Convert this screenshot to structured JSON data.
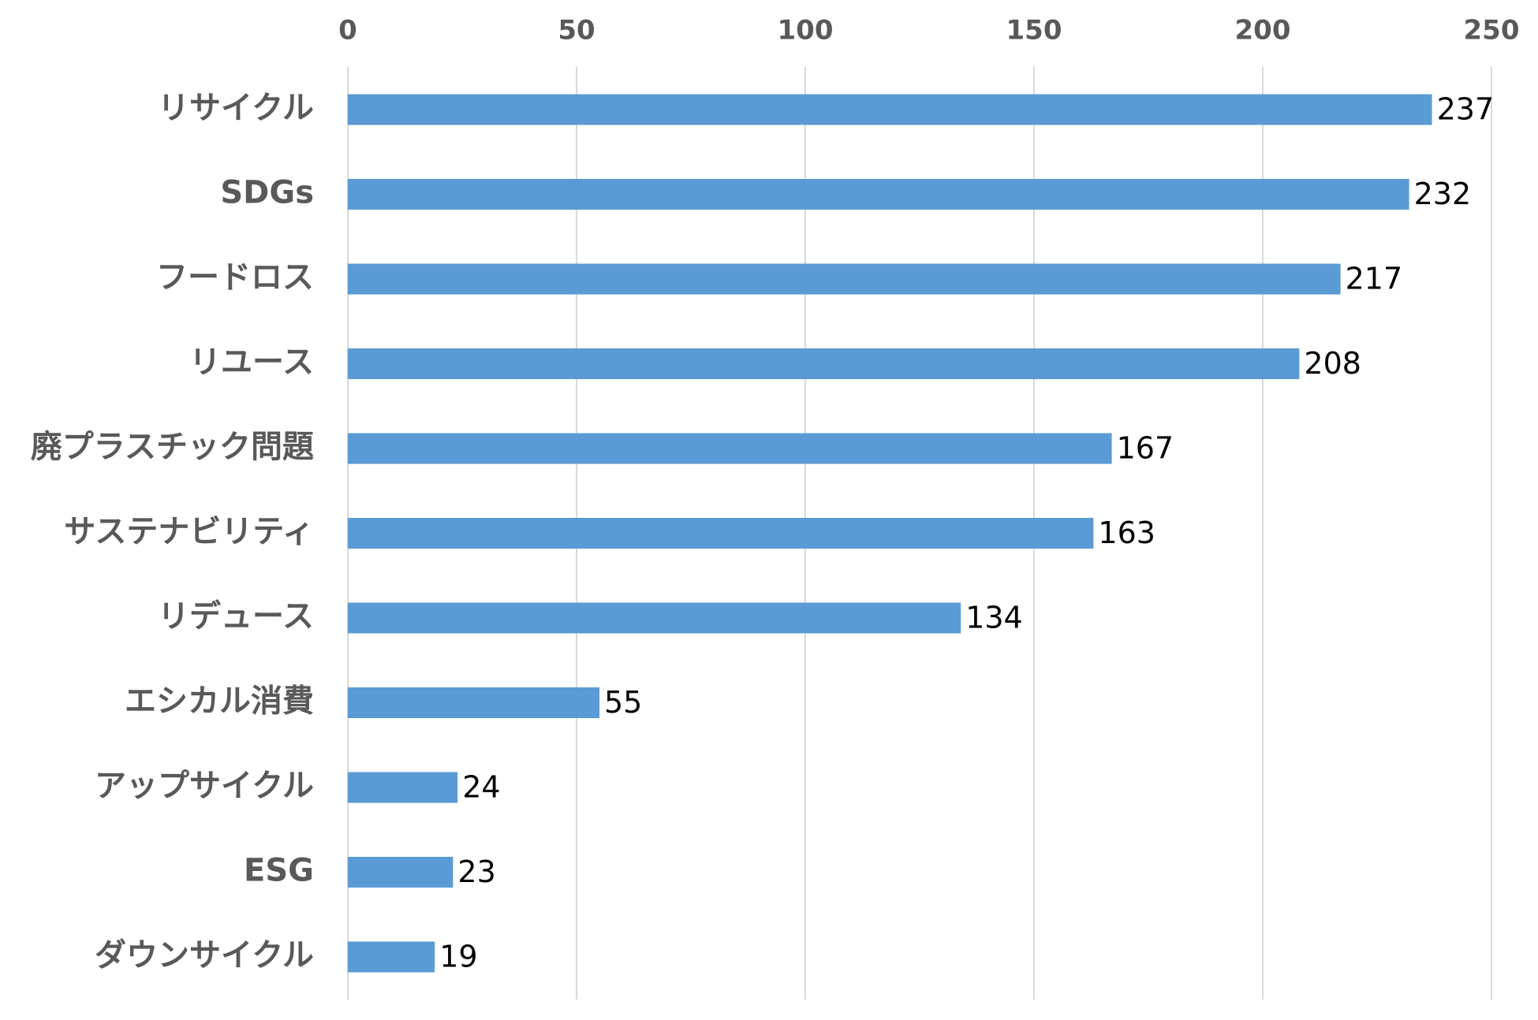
{
  "chart_data": {
    "type": "bar",
    "orientation": "horizontal",
    "categories": [
      "リサイクル",
      "SDGs",
      "フードロス",
      "リユース",
      "廃プラスチック問題",
      "サステナビリティ",
      "リデュース",
      "エシカル消費",
      "アップサイクル",
      "ESG",
      "ダウンサイクル"
    ],
    "values": [
      237,
      232,
      217,
      208,
      167,
      163,
      134,
      55,
      24,
      23,
      19
    ],
    "data_labels": [
      "237",
      "232",
      "217",
      "208",
      "167",
      "163",
      "134",
      "55",
      "24",
      "23",
      "19"
    ],
    "xlim": [
      0,
      250
    ],
    "x_ticks": [
      0,
      50,
      100,
      150,
      200,
      250
    ],
    "x_tick_labels": [
      "0",
      "50",
      "100",
      "150",
      "200",
      "250"
    ],
    "x_axis_position": "top",
    "grid": true,
    "legend": "none",
    "colors": {
      "bar": "#5b9bd5",
      "grid": "#d9d9d9",
      "axis_text": "#595959",
      "data_text": "#000000"
    }
  }
}
